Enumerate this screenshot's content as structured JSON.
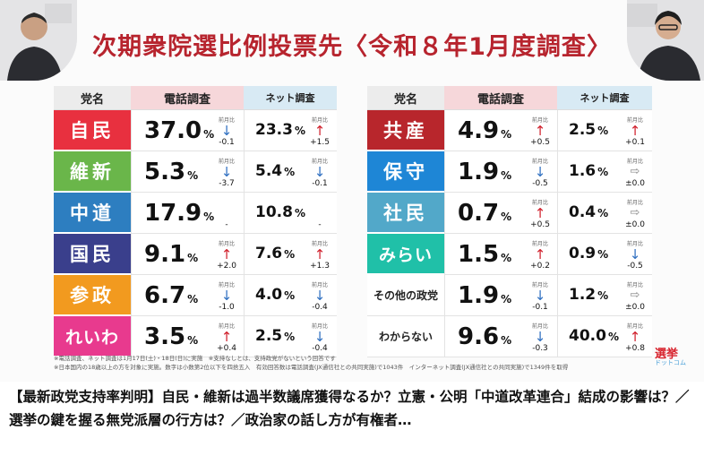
{
  "video": {
    "title": "次期衆院選比例投票先〈令和８年1月度調査〉",
    "header_party": "党名",
    "header_phone": "電話調査",
    "header_net": "ネット調査",
    "prev_month_label": "前月比",
    "notes": [
      "※電話調査、ネット調査は1月17日(土)・18日(日)に実施　※支持なしとは、支持政党がないという回答です",
      "※日本国内の18歳以上の方を対象に実施。数字は小数第2位以下を四捨五入　有効回答数は電話調査(JX通信社との共同実施)で1043件　インターネット調査(JX通信社との共同実施)で1349件を取得"
    ],
    "logo_main": "選挙",
    "logo_sub": "ドットコム"
  },
  "caption": "【最新政党支持率判明】自民・維新は過半数議席獲得なるか？立憲・公明「中道改革連合」結成の影響は？／選挙の鍵を握る無党派層の行方は？／政治家の話し方が有権者…",
  "chart_data": [
    {
      "type": "table",
      "columns": [
        "党名",
        "電話調査",
        "ネット調査"
      ],
      "rows": [
        {
          "party": "自民",
          "color": "#e8303f",
          "phone": "37.0",
          "phone_change": "-0.1",
          "phone_dir": "down",
          "net": "23.3",
          "net_change": "+1.5",
          "net_dir": "up"
        },
        {
          "party": "維新",
          "color": "#6ab64a",
          "phone": "5.3",
          "phone_change": "-3.7",
          "phone_dir": "down",
          "net": "5.4",
          "net_change": "-0.1",
          "net_dir": "down"
        },
        {
          "party": "中道",
          "color": "#2d7ec0",
          "phone": "17.9",
          "phone_change": "-",
          "phone_dir": "none",
          "net": "10.8",
          "net_change": "-",
          "net_dir": "none"
        },
        {
          "party": "国民",
          "color": "#3a3f8c",
          "phone": "9.1",
          "phone_change": "+2.0",
          "phone_dir": "up",
          "net": "7.6",
          "net_change": "+1.3",
          "net_dir": "up"
        },
        {
          "party": "参政",
          "color": "#f29a1f",
          "phone": "6.7",
          "phone_change": "-1.0",
          "phone_dir": "down",
          "net": "4.0",
          "net_change": "-0.4",
          "net_dir": "down"
        },
        {
          "party": "れいわ",
          "color": "#e83a8e",
          "phone": "3.5",
          "phone_change": "+0.4",
          "phone_dir": "up",
          "net": "2.5",
          "net_change": "-0.4",
          "net_dir": "down"
        }
      ]
    },
    {
      "type": "table",
      "columns": [
        "党名",
        "電話調査",
        "ネット調査"
      ],
      "rows": [
        {
          "party": "共産",
          "color": "#b8262c",
          "phone": "4.9",
          "phone_change": "+0.5",
          "phone_dir": "up",
          "net": "2.5",
          "net_change": "+0.1",
          "net_dir": "up"
        },
        {
          "party": "保守",
          "color": "#1e86d6",
          "phone": "1.9",
          "phone_change": "-0.5",
          "phone_dir": "down",
          "net": "1.6",
          "net_change": "±0.0",
          "net_dir": "flat"
        },
        {
          "party": "社民",
          "color": "#52a8c9",
          "phone": "0.7",
          "phone_change": "+0.5",
          "phone_dir": "up",
          "net": "0.4",
          "net_change": "±0.0",
          "net_dir": "flat"
        },
        {
          "party": "みらい",
          "color": "#20c0a8",
          "phone": "1.5",
          "phone_change": "+0.2",
          "phone_dir": "up",
          "net": "0.9",
          "net_change": "-0.5",
          "net_dir": "down"
        },
        {
          "party": "その他の政党",
          "color": "#ffffff",
          "phone": "1.9",
          "phone_change": "-0.1",
          "phone_dir": "down",
          "net": "1.2",
          "net_change": "±0.0",
          "net_dir": "flat"
        },
        {
          "party": "わからない",
          "color": "#ffffff",
          "phone": "9.6",
          "phone_change": "-0.3",
          "phone_dir": "down",
          "net": "40.0",
          "net_change": "+0.8",
          "net_dir": "up"
        }
      ]
    }
  ]
}
